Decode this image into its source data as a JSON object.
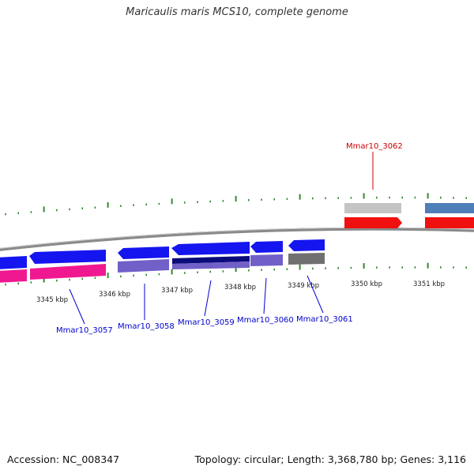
{
  "title": "Maricaulis maris MCS10, complete genome",
  "footer": {
    "accession": "Accession: NC_008347",
    "summary": "Topology: circular; Length: 3,368,780 bp; Genes: 3,116"
  },
  "colors": {
    "backbone": "#8a8a8a",
    "tick": "#2e8b2e",
    "label_blue": "#0000cc",
    "label_red": "#cc0000",
    "gene_blue": "#1515f0",
    "gene_pink": "#f01890",
    "gene_purple": "#7060c8",
    "gene_navy": "#0b0b7a",
    "gene_gray": "#707070",
    "gene_lightgray": "#c4c4c4",
    "gene_red": "#f01010",
    "gene_steelblue": "#4f7fb8"
  },
  "kbp_labels": [
    "3345 kbp",
    "3346 kbp",
    "3347 kbp",
    "3348 kbp",
    "3349 kbp",
    "3350 kbp",
    "3351 kbp"
  ],
  "gene_labels": [
    {
      "id": "g3057",
      "text": "Mmar10_3057",
      "color": "blue"
    },
    {
      "id": "g3058",
      "text": "Mmar10_3058",
      "color": "blue"
    },
    {
      "id": "g3059",
      "text": "Mmar10_3059",
      "color": "blue"
    },
    {
      "id": "g3060",
      "text": "Mmar10_3060",
      "color": "blue"
    },
    {
      "id": "g3061",
      "text": "Mmar10_3061",
      "color": "blue"
    },
    {
      "id": "g3062",
      "text": "Mmar10_3062",
      "color": "red"
    }
  ]
}
